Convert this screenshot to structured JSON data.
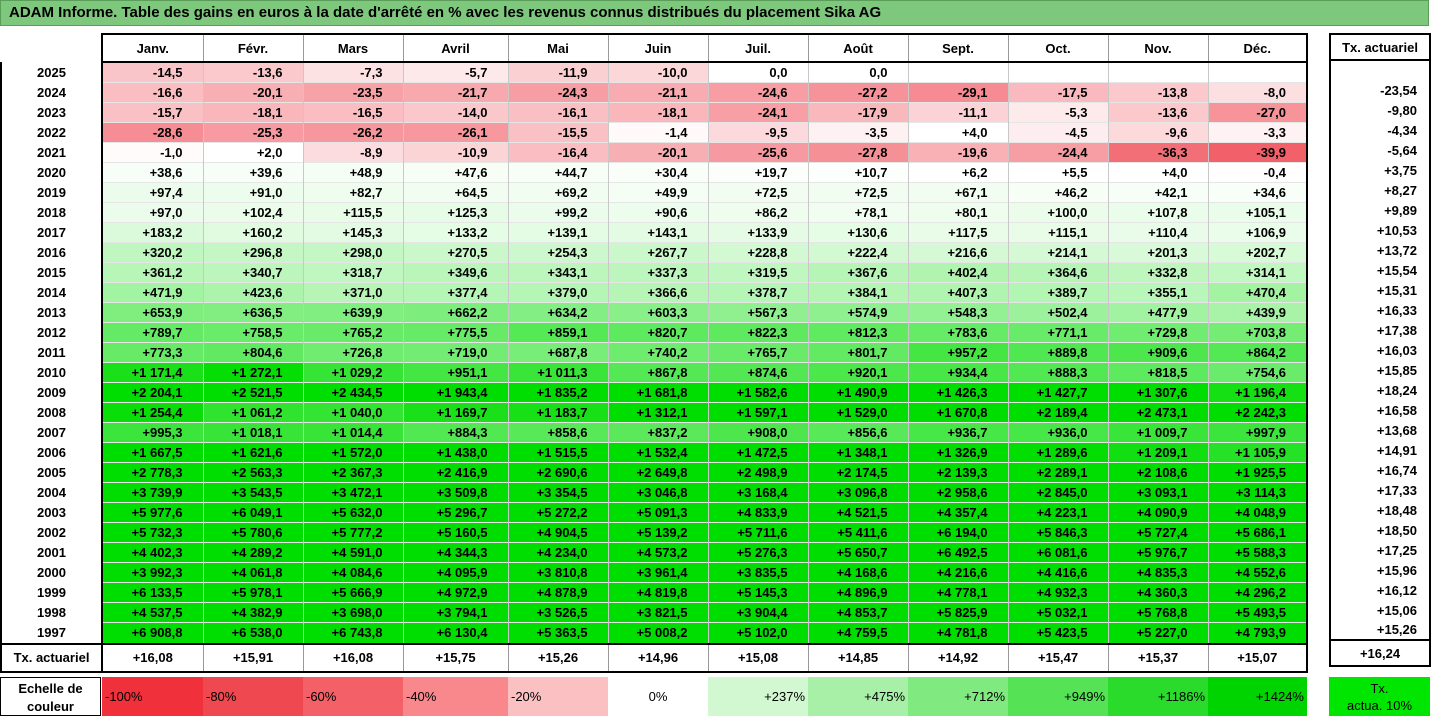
{
  "title": "ADAM Informe. Table des gains en euros à la date d'arrêté en % avec les revenus connus distribués du placement Sika AG",
  "months": [
    "Janv.",
    "Févr.",
    "Mars",
    "Avril",
    "Mai",
    "Juin",
    "Juil.",
    "Août",
    "Sept.",
    "Oct.",
    "Nov.",
    "Déc."
  ],
  "rate_header": "Tx. actuariel",
  "rows": [
    {
      "year": "2025",
      "values": [
        "-14,5",
        "-13,6",
        "-7,3",
        "-5,7",
        "-11,9",
        "-10,0",
        "0,0",
        "0,0",
        "",
        "",
        "",
        ""
      ],
      "rate": ""
    },
    {
      "year": "2024",
      "values": [
        "-16,6",
        "-20,1",
        "-23,5",
        "-21,7",
        "-24,3",
        "-21,1",
        "-24,6",
        "-27,2",
        "-29,1",
        "-17,5",
        "-13,8",
        "-8,0"
      ],
      "rate": "-23,54"
    },
    {
      "year": "2023",
      "values": [
        "-15,7",
        "-18,1",
        "-16,5",
        "-14,0",
        "-16,1",
        "-18,1",
        "-24,1",
        "-17,9",
        "-11,1",
        "-5,3",
        "-13,6",
        "-27,0"
      ],
      "rate": "-9,80"
    },
    {
      "year": "2022",
      "values": [
        "-28,6",
        "-25,3",
        "-26,2",
        "-26,1",
        "-15,5",
        "-1,4",
        "-9,5",
        "-3,5",
        "+4,0",
        "-4,5",
        "-9,6",
        "-3,3"
      ],
      "rate": "-4,34"
    },
    {
      "year": "2021",
      "values": [
        "-1,0",
        "+2,0",
        "-8,9",
        "-10,9",
        "-16,4",
        "-20,1",
        "-25,6",
        "-27,8",
        "-19,6",
        "-24,4",
        "-36,3",
        "-39,9"
      ],
      "rate": "-5,64"
    },
    {
      "year": "2020",
      "values": [
        "+38,6",
        "+39,6",
        "+48,9",
        "+47,6",
        "+44,7",
        "+30,4",
        "+19,7",
        "+10,7",
        "+6,2",
        "+5,5",
        "+4,0",
        "-0,4"
      ],
      "rate": "+3,75"
    },
    {
      "year": "2019",
      "values": [
        "+97,4",
        "+91,0",
        "+82,7",
        "+64,5",
        "+69,2",
        "+49,9",
        "+72,5",
        "+72,5",
        "+67,1",
        "+46,2",
        "+42,1",
        "+34,6"
      ],
      "rate": "+8,27"
    },
    {
      "year": "2018",
      "values": [
        "+97,0",
        "+102,4",
        "+115,5",
        "+125,3",
        "+99,2",
        "+90,6",
        "+86,2",
        "+78,1",
        "+80,1",
        "+100,0",
        "+107,8",
        "+105,1"
      ],
      "rate": "+9,89"
    },
    {
      "year": "2017",
      "values": [
        "+183,2",
        "+160,2",
        "+145,3",
        "+133,2",
        "+139,1",
        "+143,1",
        "+133,9",
        "+130,6",
        "+117,5",
        "+115,1",
        "+110,4",
        "+106,9"
      ],
      "rate": "+10,53"
    },
    {
      "year": "2016",
      "values": [
        "+320,2",
        "+296,8",
        "+298,0",
        "+270,5",
        "+254,3",
        "+267,7",
        "+228,8",
        "+222,4",
        "+216,6",
        "+214,1",
        "+201,3",
        "+202,7"
      ],
      "rate": "+13,72"
    },
    {
      "year": "2015",
      "values": [
        "+361,2",
        "+340,7",
        "+318,7",
        "+349,6",
        "+343,1",
        "+337,3",
        "+319,5",
        "+367,6",
        "+402,4",
        "+364,6",
        "+332,8",
        "+314,1"
      ],
      "rate": "+15,54"
    },
    {
      "year": "2014",
      "values": [
        "+471,9",
        "+423,6",
        "+371,0",
        "+377,4",
        "+379,0",
        "+366,6",
        "+378,7",
        "+384,1",
        "+407,3",
        "+389,7",
        "+355,1",
        "+470,4"
      ],
      "rate": "+15,31"
    },
    {
      "year": "2013",
      "values": [
        "+653,9",
        "+636,5",
        "+639,9",
        "+662,2",
        "+634,2",
        "+603,3",
        "+567,3",
        "+574,9",
        "+548,3",
        "+502,4",
        "+477,9",
        "+439,9"
      ],
      "rate": "+16,33"
    },
    {
      "year": "2012",
      "values": [
        "+789,7",
        "+758,5",
        "+765,2",
        "+775,5",
        "+859,1",
        "+820,7",
        "+822,3",
        "+812,3",
        "+783,6",
        "+771,1",
        "+729,8",
        "+703,8"
      ],
      "rate": "+17,38"
    },
    {
      "year": "2011",
      "values": [
        "+773,3",
        "+804,6",
        "+726,8",
        "+719,0",
        "+687,8",
        "+740,2",
        "+765,7",
        "+801,7",
        "+957,2",
        "+889,8",
        "+909,6",
        "+864,2"
      ],
      "rate": "+16,03"
    },
    {
      "year": "2010",
      "values": [
        "+1 171,4",
        "+1 272,1",
        "+1 029,2",
        "+951,1",
        "+1 011,3",
        "+867,8",
        "+874,6",
        "+920,1",
        "+934,4",
        "+888,3",
        "+818,5",
        "+754,6"
      ],
      "rate": "+15,85"
    },
    {
      "year": "2009",
      "values": [
        "+2 204,1",
        "+2 521,5",
        "+2 434,5",
        "+1 943,4",
        "+1 835,2",
        "+1 681,8",
        "+1 582,6",
        "+1 490,9",
        "+1 426,3",
        "+1 427,7",
        "+1 307,6",
        "+1 196,4"
      ],
      "rate": "+18,24"
    },
    {
      "year": "2008",
      "values": [
        "+1 254,4",
        "+1 061,2",
        "+1 040,0",
        "+1 169,7",
        "+1 183,7",
        "+1 312,1",
        "+1 597,1",
        "+1 529,0",
        "+1 670,8",
        "+2 189,4",
        "+2 473,1",
        "+2 242,3"
      ],
      "rate": "+16,58"
    },
    {
      "year": "2007",
      "values": [
        "+995,3",
        "+1 018,1",
        "+1 014,4",
        "+884,3",
        "+858,6",
        "+837,2",
        "+908,0",
        "+856,6",
        "+936,7",
        "+936,0",
        "+1 009,7",
        "+997,9"
      ],
      "rate": "+13,68"
    },
    {
      "year": "2006",
      "values": [
        "+1 667,5",
        "+1 621,6",
        "+1 572,0",
        "+1 438,0",
        "+1 515,5",
        "+1 532,4",
        "+1 472,5",
        "+1 348,1",
        "+1 326,9",
        "+1 289,6",
        "+1 209,1",
        "+1 105,9"
      ],
      "rate": "+14,91"
    },
    {
      "year": "2005",
      "values": [
        "+2 778,3",
        "+2 563,3",
        "+2 367,3",
        "+2 416,9",
        "+2 690,6",
        "+2 649,8",
        "+2 498,9",
        "+2 174,5",
        "+2 139,3",
        "+2 289,1",
        "+2 108,6",
        "+1 925,5"
      ],
      "rate": "+16,74"
    },
    {
      "year": "2004",
      "values": [
        "+3 739,9",
        "+3 543,5",
        "+3 472,1",
        "+3 509,8",
        "+3 354,5",
        "+3 046,8",
        "+3 168,4",
        "+3 096,8",
        "+2 958,6",
        "+2 845,0",
        "+3 093,1",
        "+3 114,3"
      ],
      "rate": "+17,33"
    },
    {
      "year": "2003",
      "values": [
        "+5 977,6",
        "+6 049,1",
        "+5 632,0",
        "+5 296,7",
        "+5 272,2",
        "+5 091,3",
        "+4 833,9",
        "+4 521,5",
        "+4 357,4",
        "+4 223,1",
        "+4 090,9",
        "+4 048,9"
      ],
      "rate": "+18,48"
    },
    {
      "year": "2002",
      "values": [
        "+5 732,3",
        "+5 780,6",
        "+5 777,2",
        "+5 160,5",
        "+4 904,5",
        "+5 139,2",
        "+5 711,6",
        "+5 411,6",
        "+6 194,0",
        "+5 846,3",
        "+5 727,4",
        "+5 686,1"
      ],
      "rate": "+18,50"
    },
    {
      "year": "2001",
      "values": [
        "+4 402,3",
        "+4 289,2",
        "+4 591,0",
        "+4 344,3",
        "+4 234,0",
        "+4 573,2",
        "+5 276,3",
        "+5 650,7",
        "+6 492,5",
        "+6 081,6",
        "+5 976,7",
        "+5 588,3"
      ],
      "rate": "+17,25"
    },
    {
      "year": "2000",
      "values": [
        "+3 992,3",
        "+4 061,8",
        "+4 084,6",
        "+4 095,9",
        "+3 810,8",
        "+3 961,4",
        "+3 835,5",
        "+4 168,6",
        "+4 216,6",
        "+4 416,6",
        "+4 835,3",
        "+4 552,6"
      ],
      "rate": "+15,96"
    },
    {
      "year": "1999",
      "values": [
        "+6 133,5",
        "+5 978,1",
        "+5 666,9",
        "+4 972,9",
        "+4 878,9",
        "+4 819,8",
        "+5 145,3",
        "+4 896,9",
        "+4 778,1",
        "+4 932,3",
        "+4 360,3",
        "+4 296,2"
      ],
      "rate": "+16,12"
    },
    {
      "year": "1998",
      "values": [
        "+4 537,5",
        "+4 382,9",
        "+3 698,0",
        "+3 794,1",
        "+3 526,5",
        "+3 821,5",
        "+3 904,4",
        "+4 853,7",
        "+5 825,9",
        "+5 032,1",
        "+5 768,8",
        "+5 493,5"
      ],
      "rate": "+15,06"
    },
    {
      "year": "1997",
      "values": [
        "+6 908,8",
        "+6 538,0",
        "+6 743,8",
        "+6 130,4",
        "+5 363,5",
        "+5 008,2",
        "+5 102,0",
        "+4 759,5",
        "+4 781,8",
        "+5 423,5",
        "+5 227,0",
        "+4 793,9"
      ],
      "rate": "+15,26"
    }
  ],
  "footer": {
    "label": "Tx. actuariel",
    "values": [
      "+16,08",
      "+15,91",
      "+16,08",
      "+15,75",
      "+15,26",
      "+14,96",
      "+15,08",
      "+14,85",
      "+14,92",
      "+15,47",
      "+15,37",
      "+15,07"
    ],
    "rate": "+16,24"
  },
  "legend": {
    "label_line1": "Echelle de",
    "label_line2": "couleur",
    "stops": [
      {
        "label": "-100%",
        "color": "#f0303a",
        "kind": "neg"
      },
      {
        "label": "-80%",
        "color": "#f04850",
        "kind": "neg"
      },
      {
        "label": "-60%",
        "color": "#f46068",
        "kind": "neg"
      },
      {
        "label": "-40%",
        "color": "#f8888c",
        "kind": "neg"
      },
      {
        "label": "-20%",
        "color": "#fbc0c2",
        "kind": "neg"
      },
      {
        "label": "0%",
        "color": "#ffffff",
        "kind": "zero"
      },
      {
        "label": "+237%",
        "color": "#d2f8d2",
        "kind": "pos"
      },
      {
        "label": "+475%",
        "color": "#a8f0a8",
        "kind": "pos"
      },
      {
        "label": "+712%",
        "color": "#80ea80",
        "kind": "pos"
      },
      {
        "label": "+949%",
        "color": "#55e255",
        "kind": "pos"
      },
      {
        "label": "+1186%",
        "color": "#2bdb2b",
        "kind": "pos"
      },
      {
        "label": "+1424%",
        "color": "#00d400",
        "kind": "pos"
      }
    ],
    "target_line1": "Tx.",
    "target_line2": "actua. 10%",
    "target_color": "#00e600"
  }
}
